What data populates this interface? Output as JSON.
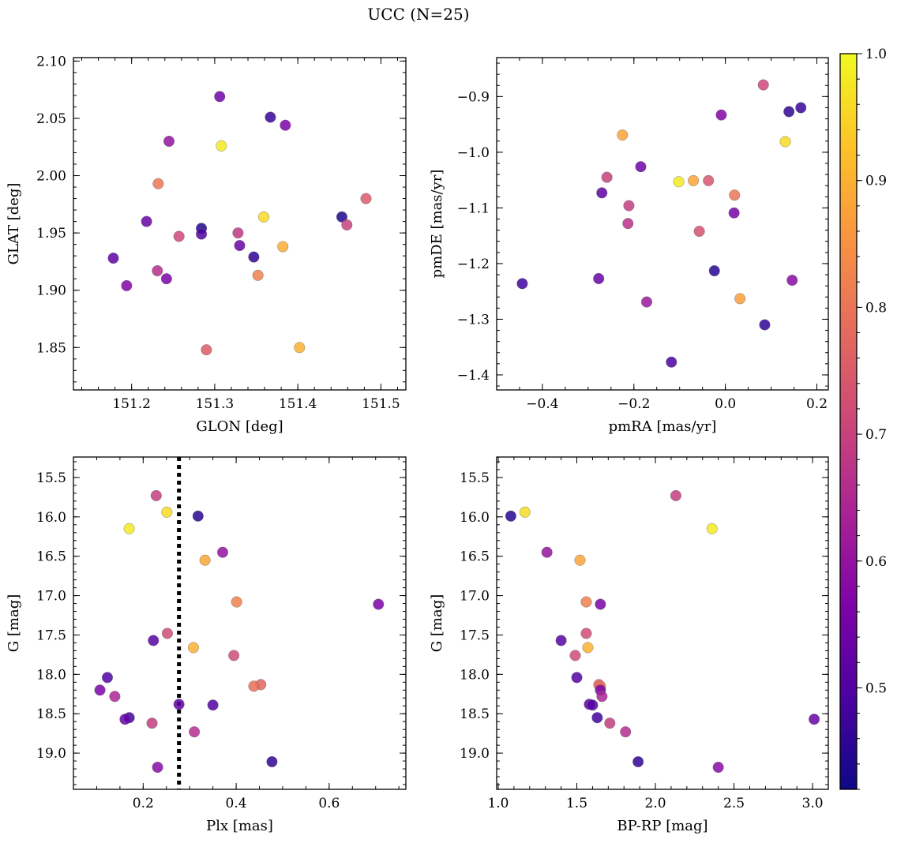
{
  "figure": {
    "title": "UCC (N=25)"
  },
  "colorbar": {
    "min": 0.42,
    "max": 1.0,
    "ticks": [
      0.5,
      0.6,
      0.7,
      0.8,
      0.9,
      1.0
    ],
    "tick_labels": [
      "0.5",
      "0.6",
      "0.7",
      "0.8",
      "0.9",
      "1.0"
    ],
    "colormap": "plasma"
  },
  "chart_data": [
    {
      "id": "glon-glat",
      "type": "scatter",
      "xlabel": "GLON [deg]",
      "ylabel": "GLAT [deg]",
      "xlim": [
        151.13,
        151.53
      ],
      "ylim": [
        1.813,
        2.103
      ],
      "xticks": [
        151.2,
        151.3,
        151.4,
        151.5
      ],
      "xtick_labels": [
        "151.2",
        "151.3",
        "151.4",
        "151.5"
      ],
      "yticks": [
        1.85,
        1.9,
        1.95,
        2.0,
        2.05,
        2.1
      ],
      "ytick_labels": [
        "1.85",
        "1.90",
        "1.95",
        "2.00",
        "2.05",
        "2.10"
      ],
      "xminor": 0.02,
      "yminor": 0.01,
      "points": [
        {
          "x": 151.306,
          "y": 2.069,
          "c": 0.54
        },
        {
          "x": 151.367,
          "y": 2.051,
          "c": 0.47
        },
        {
          "x": 151.385,
          "y": 2.044,
          "c": 0.56
        },
        {
          "x": 151.245,
          "y": 2.03,
          "c": 0.6
        },
        {
          "x": 151.308,
          "y": 2.026,
          "c": 0.98
        },
        {
          "x": 151.232,
          "y": 1.993,
          "c": 0.8
        },
        {
          "x": 151.482,
          "y": 1.98,
          "c": 0.75
        },
        {
          "x": 151.359,
          "y": 1.964,
          "c": 0.96
        },
        {
          "x": 151.453,
          "y": 1.964,
          "c": 0.44
        },
        {
          "x": 151.218,
          "y": 1.96,
          "c": 0.53
        },
        {
          "x": 151.459,
          "y": 1.957,
          "c": 0.7
        },
        {
          "x": 151.284,
          "y": 1.954,
          "c": 0.44
        },
        {
          "x": 151.284,
          "y": 1.949,
          "c": 0.5
        },
        {
          "x": 151.328,
          "y": 1.95,
          "c": 0.68
        },
        {
          "x": 151.257,
          "y": 1.947,
          "c": 0.71
        },
        {
          "x": 151.382,
          "y": 1.938,
          "c": 0.89
        },
        {
          "x": 151.33,
          "y": 1.939,
          "c": 0.53
        },
        {
          "x": 151.347,
          "y": 1.929,
          "c": 0.46
        },
        {
          "x": 151.178,
          "y": 1.928,
          "c": 0.52
        },
        {
          "x": 151.231,
          "y": 1.917,
          "c": 0.66
        },
        {
          "x": 151.352,
          "y": 1.913,
          "c": 0.82
        },
        {
          "x": 151.242,
          "y": 1.91,
          "c": 0.56
        },
        {
          "x": 151.194,
          "y": 1.904,
          "c": 0.57
        },
        {
          "x": 151.29,
          "y": 1.848,
          "c": 0.75
        },
        {
          "x": 151.402,
          "y": 1.85,
          "c": 0.9
        }
      ]
    },
    {
      "id": "pmra-pmde",
      "type": "scatter",
      "xlabel": "pmRA [mas/yr]",
      "ylabel": "pmDE [mas/yr]",
      "xlim": [
        -0.5,
        0.225
      ],
      "ylim": [
        -1.427,
        -0.83
      ],
      "xticks": [
        -0.4,
        -0.2,
        0.0,
        0.2
      ],
      "xtick_labels": [
        "−0.4",
        "−0.2",
        "0.0",
        "0.2"
      ],
      "yticks": [
        -1.4,
        -1.3,
        -1.2,
        -1.1,
        -1.0,
        -0.9
      ],
      "ytick_labels": [
        "−1.4",
        "−1.3",
        "−1.2",
        "−1.1",
        "−1.0",
        "−0.9"
      ],
      "xminor": 0.05,
      "yminor": 0.02,
      "points": [
        {
          "x": 0.083,
          "y": -0.879,
          "c": 0.71
        },
        {
          "x": 0.165,
          "y": -0.92,
          "c": 0.47
        },
        {
          "x": 0.139,
          "y": -0.927,
          "c": 0.46
        },
        {
          "x": -0.009,
          "y": -0.933,
          "c": 0.57
        },
        {
          "x": -0.225,
          "y": -0.969,
          "c": 0.88
        },
        {
          "x": 0.131,
          "y": -0.981,
          "c": 0.96
        },
        {
          "x": -0.185,
          "y": -1.026,
          "c": 0.54
        },
        {
          "x": -0.259,
          "y": -1.045,
          "c": 0.7
        },
        {
          "x": -0.037,
          "y": -1.051,
          "c": 0.74
        },
        {
          "x": -0.07,
          "y": -1.051,
          "c": 0.88
        },
        {
          "x": -0.102,
          "y": -1.053,
          "c": 0.98
        },
        {
          "x": -0.27,
          "y": -1.073,
          "c": 0.52
        },
        {
          "x": 0.02,
          "y": -1.077,
          "c": 0.8
        },
        {
          "x": -0.211,
          "y": -1.096,
          "c": 0.69
        },
        {
          "x": 0.019,
          "y": -1.109,
          "c": 0.55
        },
        {
          "x": -0.213,
          "y": -1.128,
          "c": 0.67
        },
        {
          "x": -0.057,
          "y": -1.142,
          "c": 0.73
        },
        {
          "x": -0.024,
          "y": -1.213,
          "c": 0.45
        },
        {
          "x": -0.277,
          "y": -1.227,
          "c": 0.53
        },
        {
          "x": 0.146,
          "y": -1.23,
          "c": 0.58
        },
        {
          "x": -0.444,
          "y": -1.236,
          "c": 0.48
        },
        {
          "x": 0.032,
          "y": -1.263,
          "c": 0.87
        },
        {
          "x": -0.172,
          "y": -1.269,
          "c": 0.61
        },
        {
          "x": 0.086,
          "y": -1.31,
          "c": 0.46
        },
        {
          "x": -0.118,
          "y": -1.377,
          "c": 0.49
        }
      ]
    },
    {
      "id": "plx-g",
      "type": "scatter",
      "xlabel": "Plx [mas]",
      "ylabel": "G [mag]",
      "xlim": [
        0.05,
        0.765
      ],
      "ylim": [
        19.46,
        15.24
      ],
      "yinvert": true,
      "xticks": [
        0.2,
        0.4,
        0.6
      ],
      "xtick_labels": [
        "0.2",
        "0.4",
        "0.6"
      ],
      "yticks": [
        15.5,
        16.0,
        16.5,
        17.0,
        17.5,
        18.0,
        18.5,
        19.0
      ],
      "ytick_labels": [
        "15.5",
        "16.0",
        "16.5",
        "17.0",
        "17.5",
        "18.0",
        "18.5",
        "19.0"
      ],
      "xminor": 0.05,
      "yminor": 0.1,
      "vline": {
        "x": 0.277,
        "style": "dotted"
      },
      "points": [
        {
          "x": 0.228,
          "y": 15.73,
          "c": 0.69
        },
        {
          "x": 0.251,
          "y": 15.94,
          "c": 0.96
        },
        {
          "x": 0.318,
          "y": 15.99,
          "c": 0.45
        },
        {
          "x": 0.17,
          "y": 16.15,
          "c": 0.98
        },
        {
          "x": 0.371,
          "y": 16.45,
          "c": 0.6
        },
        {
          "x": 0.333,
          "y": 16.55,
          "c": 0.88
        },
        {
          "x": 0.401,
          "y": 17.08,
          "c": 0.82
        },
        {
          "x": 0.706,
          "y": 17.11,
          "c": 0.56
        },
        {
          "x": 0.252,
          "y": 17.48,
          "c": 0.72
        },
        {
          "x": 0.222,
          "y": 17.57,
          "c": 0.51
        },
        {
          "x": 0.308,
          "y": 17.66,
          "c": 0.9
        },
        {
          "x": 0.395,
          "y": 17.76,
          "c": 0.72
        },
        {
          "x": 0.123,
          "y": 18.04,
          "c": 0.5
        },
        {
          "x": 0.453,
          "y": 18.13,
          "c": 0.77
        },
        {
          "x": 0.438,
          "y": 18.15,
          "c": 0.79
        },
        {
          "x": 0.107,
          "y": 18.2,
          "c": 0.56
        },
        {
          "x": 0.139,
          "y": 18.28,
          "c": 0.64
        },
        {
          "x": 0.277,
          "y": 18.38,
          "c": 0.52
        },
        {
          "x": 0.35,
          "y": 18.39,
          "c": 0.5
        },
        {
          "x": 0.17,
          "y": 18.55,
          "c": 0.48
        },
        {
          "x": 0.161,
          "y": 18.57,
          "c": 0.53
        },
        {
          "x": 0.219,
          "y": 18.62,
          "c": 0.69
        },
        {
          "x": 0.31,
          "y": 18.73,
          "c": 0.66
        },
        {
          "x": 0.477,
          "y": 19.11,
          "c": 0.46
        },
        {
          "x": 0.231,
          "y": 19.18,
          "c": 0.58
        }
      ]
    },
    {
      "id": "bprp-g",
      "type": "scatter",
      "xlabel": "BP-RP [mag]",
      "ylabel": "G [mag]",
      "xlim": [
        0.99,
        3.1
      ],
      "ylim": [
        19.46,
        15.24
      ],
      "yinvert": true,
      "xticks": [
        1.0,
        1.5,
        2.0,
        2.5,
        3.0
      ],
      "xtick_labels": [
        "1.0",
        "1.5",
        "2.0",
        "2.5",
        "3.0"
      ],
      "yticks": [
        15.5,
        16.0,
        16.5,
        17.0,
        17.5,
        18.0,
        18.5,
        19.0
      ],
      "ytick_labels": [
        "15.5",
        "16.0",
        "16.5",
        "17.0",
        "17.5",
        "18.0",
        "18.5",
        "19.0"
      ],
      "xminor": 0.1,
      "yminor": 0.1,
      "points": [
        {
          "x": 2.13,
          "y": 15.73,
          "c": 0.69
        },
        {
          "x": 1.08,
          "y": 15.99,
          "c": 0.45
        },
        {
          "x": 1.17,
          "y": 15.94,
          "c": 0.96
        },
        {
          "x": 2.36,
          "y": 16.15,
          "c": 0.98
        },
        {
          "x": 1.31,
          "y": 16.45,
          "c": 0.6
        },
        {
          "x": 1.52,
          "y": 16.55,
          "c": 0.88
        },
        {
          "x": 1.56,
          "y": 17.08,
          "c": 0.82
        },
        {
          "x": 1.65,
          "y": 17.11,
          "c": 0.56
        },
        {
          "x": 1.56,
          "y": 17.48,
          "c": 0.72
        },
        {
          "x": 1.4,
          "y": 17.57,
          "c": 0.51
        },
        {
          "x": 1.57,
          "y": 17.66,
          "c": 0.9
        },
        {
          "x": 1.49,
          "y": 17.76,
          "c": 0.72
        },
        {
          "x": 1.5,
          "y": 18.04,
          "c": 0.5
        },
        {
          "x": 1.64,
          "y": 18.13,
          "c": 0.77
        },
        {
          "x": 1.65,
          "y": 18.15,
          "c": 0.79
        },
        {
          "x": 1.65,
          "y": 18.2,
          "c": 0.56
        },
        {
          "x": 1.66,
          "y": 18.28,
          "c": 0.64
        },
        {
          "x": 1.58,
          "y": 18.38,
          "c": 0.52
        },
        {
          "x": 1.6,
          "y": 18.39,
          "c": 0.5
        },
        {
          "x": 1.63,
          "y": 18.55,
          "c": 0.48
        },
        {
          "x": 3.01,
          "y": 18.57,
          "c": 0.53
        },
        {
          "x": 1.71,
          "y": 18.62,
          "c": 0.69
        },
        {
          "x": 1.81,
          "y": 18.73,
          "c": 0.66
        },
        {
          "x": 1.89,
          "y": 19.11,
          "c": 0.46
        },
        {
          "x": 2.4,
          "y": 19.18,
          "c": 0.58
        }
      ]
    }
  ]
}
